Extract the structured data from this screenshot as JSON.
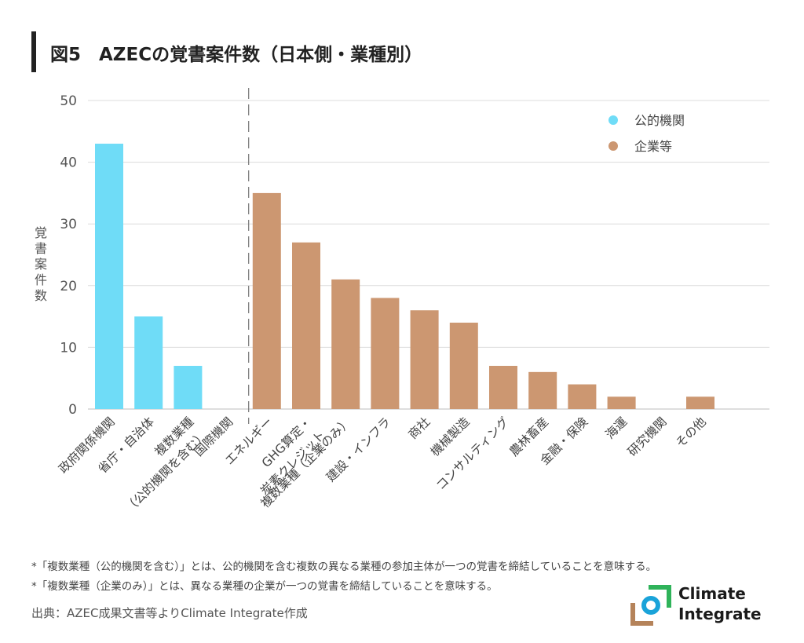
{
  "header": {
    "title": "図5　AZECの覚書案件数（日本側・業種別）"
  },
  "chart_data": {
    "type": "bar",
    "title": "図5　AZECの覚書案件数（日本側・業種別）",
    "ylabel": "覚書案件数",
    "ylim": [
      0,
      50
    ],
    "yticks": [
      0,
      10,
      20,
      30,
      40,
      50
    ],
    "grid": true,
    "legend_position": "top-right",
    "legend": [
      {
        "name": "公的機関",
        "color": "#6fdcf7"
      },
      {
        "name": "企業等",
        "color": "#cc9771"
      }
    ],
    "categories": [
      {
        "label": [
          "政府関係機関"
        ],
        "value": 43,
        "group": "公的機関"
      },
      {
        "label": [
          "省庁・自治体"
        ],
        "value": 15,
        "group": "公的機関"
      },
      {
        "label": [
          "複数業種",
          "（公的機関を含む）"
        ],
        "value": 7,
        "group": "公的機関"
      },
      {
        "label": [
          "国際機関"
        ],
        "value": 0,
        "group": "公的機関"
      },
      {
        "label": [
          "エネルギー"
        ],
        "value": 35,
        "group": "企業等"
      },
      {
        "label": [
          "GHG算定・",
          "炭素クレジット"
        ],
        "value": 27,
        "group": "企業等"
      },
      {
        "label": [
          "複数業種（企業のみ）"
        ],
        "value": 21,
        "group": "企業等"
      },
      {
        "label": [
          "建設・インフラ"
        ],
        "value": 18,
        "group": "企業等"
      },
      {
        "label": [
          "商社"
        ],
        "value": 16,
        "group": "企業等"
      },
      {
        "label": [
          "機械製造"
        ],
        "value": 14,
        "group": "企業等"
      },
      {
        "label": [
          "コンサルティング"
        ],
        "value": 7,
        "group": "企業等"
      },
      {
        "label": [
          "農林畜産"
        ],
        "value": 6,
        "group": "企業等"
      },
      {
        "label": [
          "金融・保険"
        ],
        "value": 4,
        "group": "企業等"
      },
      {
        "label": [
          "海運"
        ],
        "value": 2,
        "group": "企業等"
      },
      {
        "label": [
          "研究機関"
        ],
        "value": 0,
        "group": "企業等"
      },
      {
        "label": [
          "その他"
        ],
        "value": 2,
        "group": "企業等"
      }
    ]
  },
  "notes": [
    "*「複数業種（公的機関を含む）」とは、公的機関を含む複数の異なる業種の参加主体が一つの覚書を締結していることを意味する。",
    "*「複数業種（企業のみ）」とは、異なる業種の企業が一つの覚書を締結していることを意味する。"
  ],
  "source": "出典：AZEC成果文書等よりClimate Integrate作成",
  "logo": {
    "line1": "Climate",
    "line2": "Integrate",
    "colors": {
      "green": "#2fb35a",
      "blue": "#1aa3d9",
      "brown": "#b5835a"
    }
  }
}
